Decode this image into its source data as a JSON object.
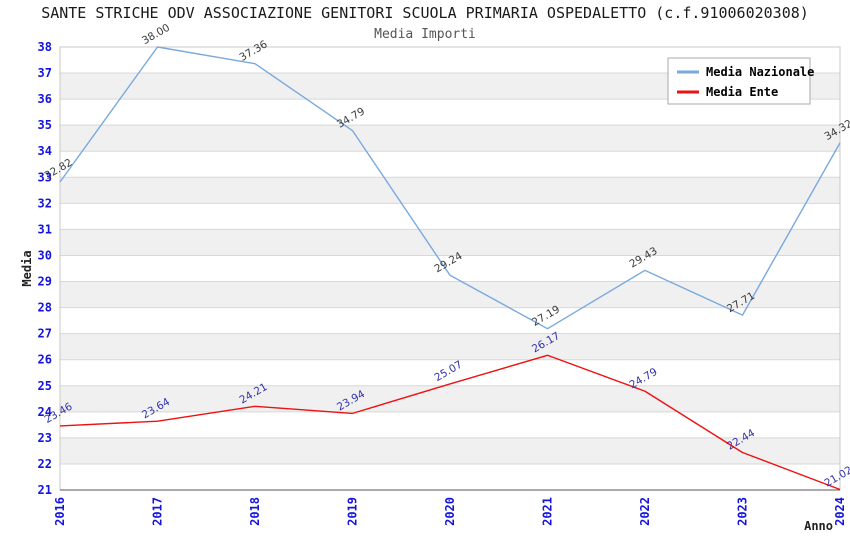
{
  "title": "SANTE STRICHE ODV ASSOCIAZIONE GENITORI SCUOLA PRIMARIA OSPEDALETTO (c.f.91006020308)",
  "subtitle": "Media Importi",
  "chart_data": {
    "type": "line",
    "x": [
      "2016",
      "2017",
      "2018",
      "2019",
      "2020",
      "2021",
      "2022",
      "2023",
      "2024"
    ],
    "xlabel": "Anno",
    "ylabel": "Media",
    "ylim": [
      21,
      38
    ],
    "ytick_step": 1,
    "grid": true,
    "banded_background": true,
    "legend_position": "top-right",
    "legend": [
      "Media Nazionale",
      "Media Ente"
    ],
    "series": [
      {
        "name": "Media Nazionale",
        "color": "#7aa9de",
        "label_color": "#3b3b3b",
        "values": [
          32.82,
          38.0,
          37.36,
          34.79,
          29.24,
          27.19,
          29.43,
          27.71,
          34.32
        ]
      },
      {
        "name": "Media Ente",
        "color": "#ee1111",
        "label_color": "#3232a8",
        "values": [
          23.46,
          23.64,
          24.21,
          23.94,
          25.07,
          26.17,
          24.79,
          22.44,
          21.02
        ]
      }
    ]
  },
  "colors": {
    "axis_tick_label": "#1414dd",
    "band_gray": "#f0f0f0",
    "gridline": "#d8d8d8",
    "plot_border": "#c8c8c8",
    "bottom_axis": "#555555",
    "title_text": "#1a1a1a",
    "subtitle_text": "#555555",
    "axis_title_text": "#222222",
    "legend_border": "#aaaaaa",
    "legend_text": "#000000"
  }
}
